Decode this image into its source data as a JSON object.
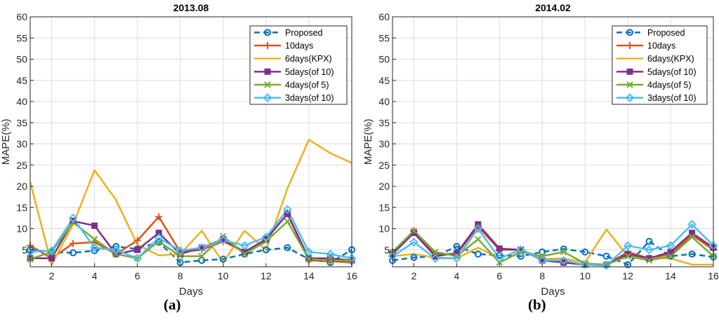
{
  "panels": [
    {
      "label": "(a)",
      "chart_data": {
        "type": "line",
        "title": "2013.08",
        "xlabel": "Days",
        "ylabel": "MAPE(%)",
        "xlim": [
          1,
          16
        ],
        "ylim": [
          1,
          60
        ],
        "x_ticks": [
          2,
          4,
          6,
          8,
          10,
          12,
          14,
          16
        ],
        "y_ticks": [
          5,
          10,
          15,
          20,
          25,
          30,
          35,
          40,
          45,
          50,
          55,
          60
        ],
        "grid": true,
        "legend_position": "top-right",
        "x": [
          1,
          2,
          3,
          4,
          5,
          6,
          7,
          8,
          9,
          10,
          11,
          12,
          13,
          14,
          15,
          16
        ],
        "series": [
          {
            "name": "Proposed",
            "color": "#0072BD",
            "style": "dashed",
            "marker": "circle",
            "values": [
              5.0,
              4.5,
              4.3,
              4.8,
              5.8,
              5.2,
              6.8,
              2.0,
              2.5,
              2.8,
              4.0,
              5.0,
              5.5,
              2.8,
              2.0,
              5.0
            ]
          },
          {
            "name": "10days",
            "color": "#D95319",
            "style": "solid",
            "marker": "plus",
            "values": [
              6.0,
              3.0,
              6.5,
              6.8,
              4.0,
              7.2,
              12.8,
              4.5,
              5.0,
              7.0,
              4.5,
              7.5,
              13.5,
              2.5,
              2.3,
              2.0
            ]
          },
          {
            "name": "6days(KPX)",
            "color": "#EDB120",
            "style": "solid",
            "marker": "none",
            "values": [
              21.0,
              1.5,
              11.0,
              23.8,
              16.8,
              6.2,
              3.7,
              4.0,
              9.5,
              2.0,
              9.5,
              5.0,
              19.5,
              31.0,
              27.8,
              25.5
            ]
          },
          {
            "name": "5days(of 10)",
            "color": "#7E2F8E",
            "style": "solid",
            "marker": "square",
            "values": [
              3.0,
              3.0,
              11.8,
              10.7,
              4.0,
              5.0,
              9.0,
              4.0,
              5.5,
              7.5,
              4.5,
              7.5,
              13.5,
              3.0,
              3.0,
              2.5
            ]
          },
          {
            "name": "4days(of 5)",
            "color": "#77AC30",
            "style": "solid",
            "marker": "x",
            "values": [
              2.8,
              4.5,
              11.5,
              7.5,
              4.0,
              3.0,
              7.0,
              3.5,
              3.5,
              8.2,
              4.0,
              7.0,
              11.7,
              2.8,
              2.5,
              2.5
            ]
          },
          {
            "name": "3days(of 10)",
            "color": "#4DBEEE",
            "style": "solid",
            "marker": "diamond",
            "values": [
              4.5,
              4.8,
              12.5,
              5.5,
              5.0,
              3.0,
              7.8,
              4.8,
              5.5,
              7.3,
              6.0,
              8.0,
              14.5,
              4.5,
              4.0,
              3.0
            ]
          }
        ]
      }
    },
    {
      "label": "(b)",
      "chart_data": {
        "type": "line",
        "title": "2014.02",
        "xlabel": "Days",
        "ylabel": "MAPE(%)",
        "xlim": [
          1,
          16
        ],
        "ylim": [
          1,
          60
        ],
        "x_ticks": [
          2,
          4,
          6,
          8,
          10,
          12,
          14,
          16
        ],
        "y_ticks": [
          5,
          10,
          15,
          20,
          25,
          30,
          35,
          40,
          45,
          50,
          55,
          60
        ],
        "grid": true,
        "legend_position": "top-right",
        "x": [
          1,
          2,
          3,
          4,
          5,
          6,
          7,
          8,
          9,
          10,
          11,
          12,
          13,
          14,
          15,
          16
        ],
        "series": [
          {
            "name": "Proposed",
            "color": "#0072BD",
            "style": "dashed",
            "marker": "circle",
            "values": [
              2.5,
              3.2,
              3.5,
              5.8,
              4.0,
              3.7,
              3.5,
              4.5,
              5.2,
              4.5,
              3.5,
              1.5,
              7.0,
              3.5,
              4.0,
              3.3
            ]
          },
          {
            "name": "10days",
            "color": "#D95319",
            "style": "solid",
            "marker": "plus",
            "values": [
              4.5,
              9.5,
              4.0,
              4.0,
              10.5,
              5.0,
              5.0,
              3.0,
              2.0,
              1.5,
              1.5,
              4.5,
              3.0,
              4.0,
              8.5,
              5.0
            ]
          },
          {
            "name": "6days(KPX)",
            "color": "#EDB120",
            "style": "solid",
            "marker": "none",
            "values": [
              3.5,
              4.0,
              3.2,
              3.0,
              5.5,
              3.0,
              5.0,
              2.8,
              3.0,
              2.0,
              9.8,
              3.5,
              3.0,
              3.0,
              1.5,
              1.5
            ]
          },
          {
            "name": "5days(of 10)",
            "color": "#7E2F8E",
            "style": "solid",
            "marker": "square",
            "values": [
              4.0,
              9.0,
              3.5,
              4.2,
              11.0,
              5.3,
              5.0,
              2.5,
              2.0,
              1.5,
              1.5,
              4.0,
              3.0,
              4.5,
              9.0,
              5.5
            ]
          },
          {
            "name": "4days(of 5)",
            "color": "#77AC30",
            "style": "solid",
            "marker": "x",
            "values": [
              4.5,
              9.5,
              4.5,
              3.5,
              7.5,
              2.0,
              4.5,
              3.5,
              4.5,
              1.8,
              1.5,
              3.5,
              2.5,
              3.5,
              8.0,
              3.5
            ]
          },
          {
            "name": "3days(of 10)",
            "color": "#4DBEEE",
            "style": "solid",
            "marker": "diamond",
            "values": [
              3.5,
              6.8,
              3.0,
              3.0,
              10.0,
              3.0,
              5.0,
              2.5,
              2.5,
              1.5,
              1.3,
              6.0,
              5.0,
              6.0,
              11.0,
              6.0
            ]
          }
        ]
      }
    }
  ]
}
